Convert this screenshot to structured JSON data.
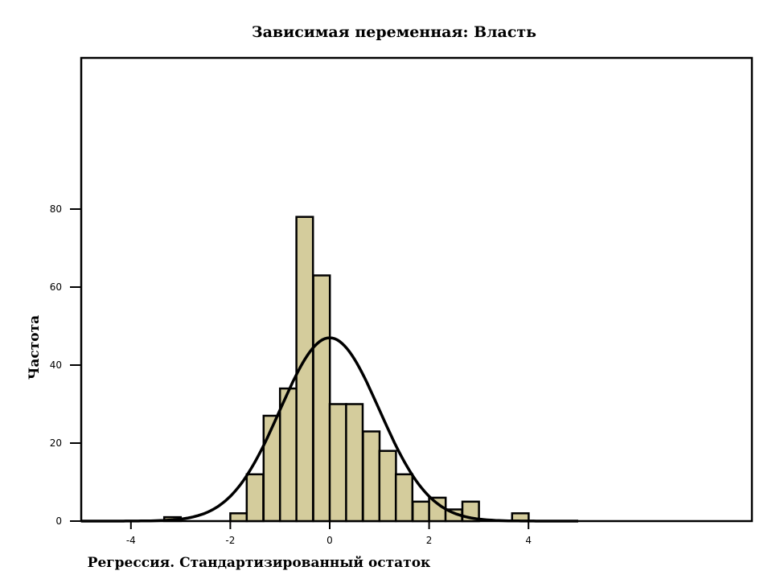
{
  "chart_data": {
    "type": "bar",
    "title": "Зависимая переменная: Власть",
    "xlabel": "Регрессия. Стандартизированный остаток",
    "ylabel": "Частота",
    "xlim": [
      -5,
      8.5
    ],
    "ylim": [
      0,
      120
    ],
    "x_ticks": [
      -4,
      -2,
      0,
      2,
      4
    ],
    "y_ticks": [
      0,
      20,
      40,
      60,
      80
    ],
    "bin_width": 0.333,
    "bins": [
      {
        "start": -3.33,
        "count": 1
      },
      {
        "start": -2.0,
        "count": 2
      },
      {
        "start": -1.67,
        "count": 12
      },
      {
        "start": -1.33,
        "count": 27
      },
      {
        "start": -1.0,
        "count": 34
      },
      {
        "start": -0.67,
        "count": 78
      },
      {
        "start": -0.33,
        "count": 63
      },
      {
        "start": 0.0,
        "count": 30
      },
      {
        "start": 0.33,
        "count": 30
      },
      {
        "start": 0.67,
        "count": 23
      },
      {
        "start": 1.0,
        "count": 18
      },
      {
        "start": 1.33,
        "count": 12
      },
      {
        "start": 1.67,
        "count": 5
      },
      {
        "start": 2.0,
        "count": 6
      },
      {
        "start": 2.33,
        "count": 3
      },
      {
        "start": 2.67,
        "count": 5
      },
      {
        "start": 3.67,
        "count": 2
      }
    ],
    "normal_curve": {
      "mean": 0,
      "sd": 1,
      "peak": 47,
      "x_range": [
        -5,
        5
      ]
    },
    "grid": false,
    "colors": {
      "bar_fill": "#d4cc9c",
      "bar_stroke": "#000000",
      "curve": "#000000"
    }
  }
}
